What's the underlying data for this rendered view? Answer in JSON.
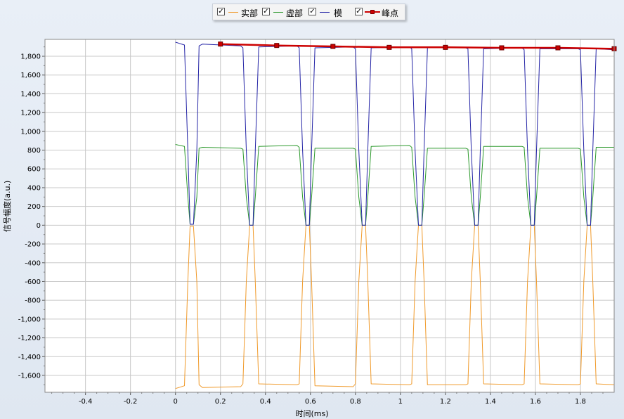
{
  "legend": {
    "items": [
      {
        "label": "实部",
        "color": "#f09a2a",
        "marker": false,
        "checked": "✓"
      },
      {
        "label": "虚部",
        "color": "#2e9a2e",
        "marker": false,
        "checked": "✓"
      },
      {
        "label": "模",
        "color": "#2424a6",
        "marker": false,
        "checked": "✓"
      },
      {
        "label": "峰点",
        "color": "#cc0000",
        "marker": true,
        "checked": "✓"
      }
    ]
  },
  "chart_data": {
    "type": "line",
    "xlabel": "时间(ms)",
    "ylabel": "信号幅度(a.u.)",
    "xlim": [
      -0.58,
      1.95
    ],
    "ylim": [
      -1780,
      1980
    ],
    "grid": true,
    "x_ticks": [
      "-0.4",
      "-0.2",
      "0",
      "0.2",
      "0.4",
      "0.6",
      "0.8",
      "1",
      "1.2",
      "1.4",
      "1.6",
      "1.8"
    ],
    "x_tick_values": [
      -0.4,
      -0.2,
      0,
      0.2,
      0.4,
      0.6,
      0.8,
      1.0,
      1.2,
      1.4,
      1.6,
      1.8
    ],
    "y_ticks": [
      "1,800",
      "1,600",
      "1,400",
      "1,200",
      "1,000",
      "800",
      "600",
      "400",
      "200",
      "0",
      "-200",
      "-400",
      "-600",
      "-800",
      "-1,000",
      "-1,200",
      "-1,400",
      "-1,600"
    ],
    "y_tick_values": [
      1800,
      1600,
      1400,
      1200,
      1000,
      800,
      600,
      400,
      200,
      0,
      -200,
      -400,
      -600,
      -800,
      -1000,
      -1200,
      -1400,
      -1600
    ],
    "series": [
      {
        "name": "实部",
        "color": "#f09a2a",
        "x": [
          0,
          0.04,
          0.055,
          0.065,
          0.08,
          0.095,
          0.105,
          0.12,
          0.29,
          0.3,
          0.315,
          0.33,
          0.345,
          0.355,
          0.37,
          0.54,
          0.55,
          0.565,
          0.58,
          0.595,
          0.605,
          0.62,
          0.79,
          0.8,
          0.815,
          0.83,
          0.845,
          0.855,
          0.87,
          1.04,
          1.05,
          1.065,
          1.08,
          1.095,
          1.105,
          1.12,
          1.29,
          1.3,
          1.315,
          1.33,
          1.345,
          1.355,
          1.37,
          1.54,
          1.55,
          1.565,
          1.58,
          1.595,
          1.605,
          1.62,
          1.79,
          1.8,
          1.815,
          1.83,
          1.845,
          1.855,
          1.87,
          1.95
        ],
        "y": [
          -1740,
          -1710,
          -600,
          -10,
          -10,
          -600,
          -1700,
          -1730,
          -1720,
          -1690,
          -600,
          0,
          0,
          -600,
          -1690,
          -1700,
          -1690,
          -600,
          0,
          0,
          -600,
          -1710,
          -1720,
          -1690,
          -600,
          0,
          0,
          -600,
          -1690,
          -1700,
          -1690,
          -600,
          0,
          0,
          -600,
          -1700,
          -1700,
          -1690,
          -600,
          0,
          0,
          -600,
          -1690,
          -1700,
          -1690,
          -600,
          0,
          0,
          -600,
          -1690,
          -1700,
          -1690,
          -600,
          0,
          0,
          -600,
          -1690,
          -1700
        ]
      },
      {
        "name": "虚部",
        "color": "#2e9a2e",
        "x": [
          0,
          0.04,
          0.055,
          0.065,
          0.08,
          0.095,
          0.105,
          0.12,
          0.29,
          0.3,
          0.315,
          0.33,
          0.345,
          0.355,
          0.37,
          0.54,
          0.55,
          0.565,
          0.58,
          0.595,
          0.605,
          0.62,
          0.79,
          0.8,
          0.815,
          0.83,
          0.845,
          0.855,
          0.87,
          1.04,
          1.05,
          1.065,
          1.08,
          1.095,
          1.105,
          1.12,
          1.29,
          1.3,
          1.315,
          1.33,
          1.345,
          1.355,
          1.37,
          1.54,
          1.55,
          1.565,
          1.58,
          1.595,
          1.605,
          1.62,
          1.79,
          1.8,
          1.815,
          1.83,
          1.845,
          1.855,
          1.87,
          1.95
        ],
        "y": [
          860,
          840,
          300,
          10,
          10,
          300,
          820,
          830,
          820,
          810,
          300,
          0,
          0,
          300,
          840,
          850,
          830,
          300,
          0,
          0,
          300,
          820,
          820,
          810,
          300,
          0,
          0,
          300,
          840,
          850,
          830,
          300,
          0,
          0,
          300,
          820,
          820,
          810,
          300,
          0,
          0,
          300,
          840,
          840,
          830,
          300,
          0,
          0,
          300,
          820,
          820,
          810,
          300,
          0,
          0,
          300,
          830,
          830
        ]
      },
      {
        "name": "模",
        "color": "#2424a6",
        "x": [
          0,
          0.04,
          0.055,
          0.065,
          0.08,
          0.095,
          0.105,
          0.12,
          0.29,
          0.3,
          0.315,
          0.33,
          0.345,
          0.355,
          0.37,
          0.54,
          0.55,
          0.565,
          0.58,
          0.595,
          0.605,
          0.62,
          0.79,
          0.8,
          0.815,
          0.83,
          0.845,
          0.855,
          0.87,
          1.04,
          1.05,
          1.065,
          1.08,
          1.095,
          1.105,
          1.12,
          1.29,
          1.3,
          1.315,
          1.33,
          1.345,
          1.355,
          1.37,
          1.54,
          1.55,
          1.565,
          1.58,
          1.595,
          1.605,
          1.62,
          1.79,
          1.8,
          1.815,
          1.83,
          1.845,
          1.855,
          1.87,
          1.95
        ],
        "y": [
          1950,
          1920,
          800,
          10,
          10,
          800,
          1910,
          1930,
          1910,
          1890,
          800,
          0,
          0,
          800,
          1900,
          1910,
          1890,
          800,
          0,
          0,
          800,
          1890,
          1900,
          1880,
          800,
          0,
          0,
          800,
          1890,
          1900,
          1880,
          800,
          0,
          0,
          800,
          1890,
          1890,
          1880,
          800,
          0,
          0,
          800,
          1880,
          1890,
          1870,
          800,
          0,
          0,
          800,
          1880,
          1880,
          1870,
          800,
          0,
          0,
          800,
          1880,
          1870
        ]
      },
      {
        "name": "峰点",
        "color": "#cc0000",
        "marker": "square",
        "x": [
          0.2,
          0.45,
          0.7,
          0.95,
          1.2,
          1.45,
          1.7,
          1.95
        ],
        "y": [
          1930,
          1915,
          1905,
          1895,
          1895,
          1890,
          1890,
          1880
        ]
      }
    ]
  }
}
